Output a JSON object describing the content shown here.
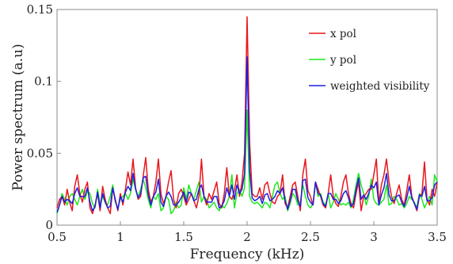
{
  "chart_data": {
    "type": "line",
    "xlabel": "Frequency (kHz)",
    "ylabel": "Power spectrum (a.u)",
    "xlim": [
      0.5,
      3.5
    ],
    "ylim": [
      0,
      0.15
    ],
    "xticks": [
      0.5,
      1,
      1.5,
      2,
      2.5,
      3,
      3.5
    ],
    "xtick_labels": [
      "0.5",
      "1",
      "1.5",
      "2",
      "2.5",
      "3",
      "3.5"
    ],
    "yticks": [
      0,
      0.05,
      0.1,
      0.15
    ],
    "ytick_labels": [
      "0",
      "0.05",
      "0.1",
      "0.15"
    ],
    "grid": false,
    "legend_position": "top-right",
    "x": [
      0.5,
      0.52,
      0.54,
      0.56,
      0.58,
      0.6,
      0.62,
      0.64,
      0.66,
      0.68,
      0.7,
      0.72,
      0.74,
      0.76,
      0.78,
      0.8,
      0.82,
      0.84,
      0.86,
      0.88,
      0.9,
      0.92,
      0.94,
      0.96,
      0.98,
      1.0,
      1.02,
      1.04,
      1.06,
      1.08,
      1.1,
      1.12,
      1.14,
      1.16,
      1.18,
      1.2,
      1.22,
      1.24,
      1.26,
      1.28,
      1.3,
      1.32,
      1.34,
      1.36,
      1.38,
      1.4,
      1.42,
      1.44,
      1.46,
      1.48,
      1.5,
      1.52,
      1.54,
      1.56,
      1.58,
      1.6,
      1.62,
      1.64,
      1.66,
      1.68,
      1.7,
      1.72,
      1.74,
      1.76,
      1.78,
      1.8,
      1.82,
      1.84,
      1.86,
      1.88,
      1.9,
      1.92,
      1.94,
      1.96,
      1.98,
      2.0,
      2.02,
      2.04,
      2.06,
      2.08,
      2.1,
      2.12,
      2.14,
      2.16,
      2.18,
      2.2,
      2.22,
      2.24,
      2.26,
      2.28,
      2.3,
      2.32,
      2.34,
      2.36,
      2.38,
      2.4,
      2.42,
      2.44,
      2.46,
      2.48,
      2.5,
      2.52,
      2.54,
      2.56,
      2.58,
      2.6,
      2.62,
      2.64,
      2.66,
      2.68,
      2.7,
      2.72,
      2.74,
      2.76,
      2.78,
      2.8,
      2.82,
      2.84,
      2.86,
      2.88,
      2.9,
      2.92,
      2.94,
      2.96,
      2.98,
      3.0,
      3.02,
      3.04,
      3.06,
      3.08,
      3.1,
      3.12,
      3.14,
      3.16,
      3.18,
      3.2,
      3.22,
      3.24,
      3.26,
      3.28,
      3.3,
      3.32,
      3.34,
      3.36,
      3.38,
      3.4,
      3.42,
      3.44,
      3.46,
      3.48,
      3.5
    ],
    "series": [
      {
        "name": "x pol",
        "color": "#e8161d",
        "values": [
          0.012,
          0.018,
          0.02,
          0.014,
          0.025,
          0.016,
          0.01,
          0.027,
          0.035,
          0.022,
          0.016,
          0.025,
          0.03,
          0.012,
          0.008,
          0.014,
          0.022,
          0.01,
          0.027,
          0.018,
          0.012,
          0.008,
          0.026,
          0.018,
          0.01,
          0.022,
          0.014,
          0.025,
          0.037,
          0.028,
          0.046,
          0.026,
          0.018,
          0.02,
          0.034,
          0.047,
          0.025,
          0.016,
          0.02,
          0.03,
          0.046,
          0.022,
          0.015,
          0.02,
          0.03,
          0.038,
          0.018,
          0.012,
          0.022,
          0.025,
          0.02,
          0.014,
          0.018,
          0.022,
          0.017,
          0.012,
          0.02,
          0.046,
          0.02,
          0.014,
          0.022,
          0.018,
          0.024,
          0.03,
          0.015,
          0.012,
          0.022,
          0.04,
          0.02,
          0.018,
          0.024,
          0.035,
          0.02,
          0.03,
          0.05,
          0.145,
          0.058,
          0.022,
          0.02,
          0.02,
          0.026,
          0.018,
          0.028,
          0.03,
          0.022,
          0.016,
          0.015,
          0.02,
          0.022,
          0.035,
          0.015,
          0.012,
          0.02,
          0.028,
          0.03,
          0.02,
          0.01,
          0.035,
          0.046,
          0.024,
          0.02,
          0.014,
          0.03,
          0.025,
          0.02,
          0.014,
          0.012,
          0.022,
          0.035,
          0.02,
          0.015,
          0.013,
          0.02,
          0.03,
          0.035,
          0.022,
          0.015,
          0.012,
          0.022,
          0.03,
          0.01,
          0.02,
          0.022,
          0.025,
          0.025,
          0.035,
          0.046,
          0.015,
          0.028,
          0.035,
          0.046,
          0.03,
          0.02,
          0.015,
          0.022,
          0.028,
          0.018,
          0.014,
          0.024,
          0.035,
          0.02,
          0.015,
          0.01,
          0.02,
          0.022,
          0.044,
          0.018,
          0.014,
          0.025,
          0.02,
          0.03
        ]
      },
      {
        "name": "y pol",
        "color": "#1ee81e",
        "values": [
          0.008,
          0.014,
          0.022,
          0.018,
          0.014,
          0.02,
          0.022,
          0.018,
          0.014,
          0.02,
          0.025,
          0.018,
          0.024,
          0.022,
          0.015,
          0.012,
          0.025,
          0.015,
          0.02,
          0.016,
          0.014,
          0.02,
          0.028,
          0.016,
          0.012,
          0.018,
          0.02,
          0.022,
          0.018,
          0.022,
          0.032,
          0.025,
          0.02,
          0.025,
          0.032,
          0.026,
          0.018,
          0.012,
          0.02,
          0.018,
          0.022,
          0.01,
          0.012,
          0.02,
          0.018,
          0.008,
          0.01,
          0.016,
          0.012,
          0.014,
          0.026,
          0.018,
          0.028,
          0.022,
          0.018,
          0.024,
          0.03,
          0.016,
          0.02,
          0.018,
          0.012,
          0.014,
          0.016,
          0.012,
          0.01,
          0.014,
          0.012,
          0.015,
          0.02,
          0.035,
          0.012,
          0.022,
          0.025,
          0.02,
          0.026,
          0.08,
          0.02,
          0.016,
          0.015,
          0.016,
          0.014,
          0.012,
          0.016,
          0.015,
          0.012,
          0.02,
          0.028,
          0.03,
          0.022,
          0.018,
          0.02,
          0.01,
          0.015,
          0.022,
          0.02,
          0.014,
          0.016,
          0.028,
          0.02,
          0.014,
          0.012,
          0.015,
          0.03,
          0.02,
          0.022,
          0.016,
          0.014,
          0.022,
          0.012,
          0.016,
          0.022,
          0.018,
          0.014,
          0.015,
          0.014,
          0.016,
          0.012,
          0.018,
          0.028,
          0.036,
          0.028,
          0.022,
          0.014,
          0.02,
          0.032,
          0.018,
          0.015,
          0.014,
          0.016,
          0.018,
          0.028,
          0.014,
          0.015,
          0.02,
          0.018,
          0.014,
          0.015,
          0.012,
          0.015,
          0.02,
          0.018,
          0.016,
          0.012,
          0.022,
          0.018,
          0.012,
          0.016,
          0.02,
          0.014,
          0.035,
          0.03
        ]
      },
      {
        "name": "weighted visibility",
        "color": "#1f1fe0",
        "values": [
          0.009,
          0.014,
          0.02,
          0.016,
          0.018,
          0.017,
          0.015,
          0.022,
          0.026,
          0.02,
          0.02,
          0.02,
          0.026,
          0.016,
          0.01,
          0.013,
          0.023,
          0.012,
          0.022,
          0.016,
          0.012,
          0.013,
          0.026,
          0.017,
          0.011,
          0.02,
          0.016,
          0.023,
          0.027,
          0.024,
          0.036,
          0.025,
          0.019,
          0.022,
          0.033,
          0.034,
          0.021,
          0.014,
          0.02,
          0.023,
          0.032,
          0.016,
          0.013,
          0.02,
          0.023,
          0.02,
          0.014,
          0.014,
          0.016,
          0.019,
          0.023,
          0.016,
          0.023,
          0.022,
          0.017,
          0.018,
          0.025,
          0.028,
          0.02,
          0.016,
          0.016,
          0.016,
          0.02,
          0.02,
          0.012,
          0.013,
          0.017,
          0.026,
          0.02,
          0.028,
          0.018,
          0.028,
          0.022,
          0.025,
          0.036,
          0.117,
          0.038,
          0.019,
          0.017,
          0.018,
          0.02,
          0.015,
          0.021,
          0.022,
          0.017,
          0.018,
          0.02,
          0.024,
          0.022,
          0.026,
          0.017,
          0.011,
          0.017,
          0.025,
          0.025,
          0.017,
          0.013,
          0.031,
          0.032,
          0.019,
          0.016,
          0.014,
          0.03,
          0.022,
          0.021,
          0.015,
          0.013,
          0.022,
          0.022,
          0.018,
          0.018,
          0.015,
          0.017,
          0.022,
          0.024,
          0.019,
          0.013,
          0.015,
          0.025,
          0.033,
          0.018,
          0.021,
          0.018,
          0.022,
          0.028,
          0.026,
          0.03,
          0.014,
          0.021,
          0.026,
          0.036,
          0.021,
          0.017,
          0.017,
          0.02,
          0.021,
          0.016,
          0.013,
          0.019,
          0.027,
          0.019,
          0.015,
          0.011,
          0.021,
          0.02,
          0.027,
          0.017,
          0.017,
          0.019,
          0.028,
          0.03
        ]
      }
    ]
  }
}
